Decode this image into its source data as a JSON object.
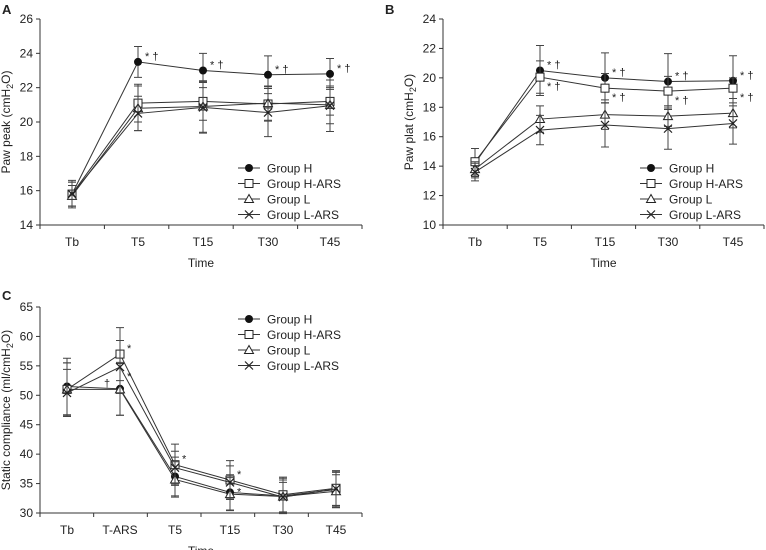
{
  "legend": [
    "Group H",
    "Group H-ARS",
    "Group L",
    "Group L-ARS"
  ],
  "markers": [
    "filled-circle",
    "open-square",
    "open-triangle",
    "cross"
  ],
  "chart_data": [
    {
      "panel": "A",
      "type": "line",
      "xlabel": "Time",
      "ylabel": "Paw peak (cmH2O)",
      "ylim": [
        14,
        26
      ],
      "yticks": [
        14,
        16,
        18,
        20,
        22,
        24,
        26
      ],
      "categories": [
        "Tb",
        "T5",
        "T15",
        "T30",
        "T45"
      ],
      "legend_position": "bottom-right",
      "series": [
        {
          "name": "Group H",
          "values": [
            15.8,
            23.5,
            23.0,
            22.75,
            22.8
          ],
          "err": [
            0.8,
            0.9,
            1.0,
            1.1,
            0.9
          ]
        },
        {
          "name": "Group H-ARS",
          "values": [
            15.8,
            21.1,
            21.2,
            21.05,
            21.2
          ],
          "err": [
            0.7,
            1.1,
            1.1,
            1.0,
            0.8
          ]
        },
        {
          "name": "Group L",
          "values": [
            15.7,
            20.8,
            20.9,
            21.1,
            21.0
          ],
          "err": [
            0.6,
            1.3,
            1.5,
            1.0,
            1.1
          ]
        },
        {
          "name": "Group L-ARS",
          "values": [
            15.8,
            20.5,
            20.85,
            20.55,
            20.95
          ],
          "err": [
            0.7,
            1.0,
            1.5,
            1.4,
            1.5
          ]
        }
      ],
      "annotations": [
        {
          "text": "* †",
          "series": 0,
          "points": [
            1,
            2,
            3,
            4
          ]
        }
      ]
    },
    {
      "panel": "B",
      "type": "line",
      "xlabel": "Time",
      "ylabel": "Paw plat (cmH2O)",
      "ylim": [
        10,
        24
      ],
      "yticks": [
        10,
        12,
        14,
        16,
        18,
        20,
        22,
        24
      ],
      "categories": [
        "Tb",
        "T5",
        "T15",
        "T30",
        "T45"
      ],
      "legend_position": "bottom-right",
      "series": [
        {
          "name": "Group H",
          "values": [
            14.2,
            20.5,
            20.0,
            19.75,
            19.8
          ],
          "err": [
            1.0,
            1.7,
            1.7,
            1.9,
            1.7
          ]
        },
        {
          "name": "Group H-ARS",
          "values": [
            14.3,
            20.05,
            19.3,
            19.1,
            19.3
          ],
          "err": [
            0.9,
            1.1,
            1.0,
            1.0,
            0.7
          ]
        },
        {
          "name": "Group L",
          "values": [
            13.8,
            17.2,
            17.5,
            17.4,
            17.6
          ],
          "err": [
            0.5,
            0.9,
            1.0,
            0.7,
            1.0
          ]
        },
        {
          "name": "Group L-ARS",
          "values": [
            13.6,
            16.45,
            16.8,
            16.55,
            16.9
          ],
          "err": [
            0.6,
            1.0,
            1.5,
            1.4,
            1.4
          ]
        }
      ],
      "annotations": [
        {
          "text": "* †",
          "series": 0,
          "points": [
            1,
            2,
            3,
            4
          ]
        },
        {
          "text": "* †",
          "series": 1,
          "points": [
            1,
            2,
            3,
            4
          ]
        }
      ]
    },
    {
      "panel": "C",
      "type": "line",
      "xlabel": "Time",
      "ylabel": "Static compliance (ml/cmH2O)",
      "ylim": [
        30,
        65
      ],
      "yticks": [
        30,
        35,
        40,
        45,
        50,
        55,
        60,
        65
      ],
      "categories": [
        "Tb",
        "T-ARS",
        "T5",
        "T15",
        "T30",
        "T45"
      ],
      "legend_position": "top-right",
      "series": [
        {
          "name": "Group H",
          "values": [
            51.5,
            51.1,
            36.2,
            33.5,
            32.9,
            34.0
          ],
          "err": [
            4.8,
            4.5,
            3.3,
            3.0,
            3.0,
            3.0
          ]
        },
        {
          "name": "Group H-ARS",
          "values": [
            51.0,
            57.0,
            38.2,
            35.6,
            33.1,
            34.2
          ],
          "err": [
            4.5,
            4.5,
            3.5,
            3.3,
            3.0,
            3.0
          ]
        },
        {
          "name": "Group L",
          "values": [
            51.0,
            51.0,
            35.7,
            33.2,
            32.8,
            33.7
          ],
          "err": [
            4.5,
            4.4,
            3.0,
            2.8,
            2.8,
            2.8
          ]
        },
        {
          "name": "Group L-ARS",
          "values": [
            50.4,
            54.8,
            37.7,
            35.2,
            32.7,
            34.1
          ],
          "err": [
            4.0,
            4.5,
            2.8,
            2.8,
            2.5,
            2.8
          ]
        }
      ],
      "annotations": [
        {
          "text": "*",
          "series": 1,
          "points": [
            1,
            2,
            3
          ]
        },
        {
          "text": "*",
          "series": 3,
          "points": [
            1,
            3
          ]
        },
        {
          "text": "†",
          "series": 0,
          "points": [
            1
          ],
          "side": "left"
        }
      ]
    }
  ]
}
